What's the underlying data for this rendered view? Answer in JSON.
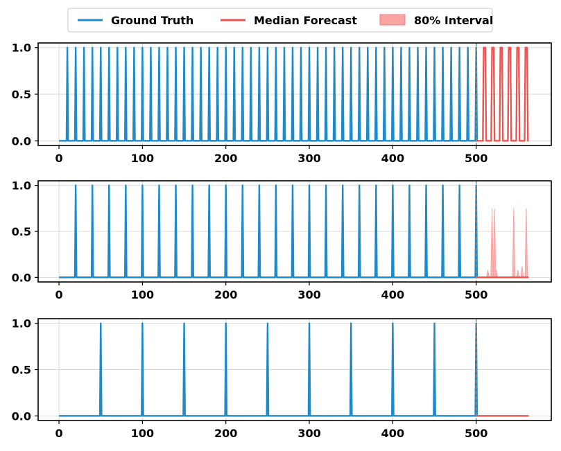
{
  "legend": [
    {
      "label": "Ground Truth",
      "color": "#1f8ac9",
      "kind": "line"
    },
    {
      "label": "Median Forecast",
      "color": "#ef5350",
      "kind": "line"
    },
    {
      "label": "80% Interval",
      "color": "#f9a3a3",
      "kind": "patch"
    }
  ],
  "chart_data": [
    {
      "type": "line",
      "xlim": [
        -25,
        590
      ],
      "ylim": [
        -0.05,
        1.05
      ],
      "xticks": [
        0,
        100,
        200,
        300,
        400,
        500
      ],
      "yticks": [
        0.0,
        0.5,
        1.0
      ],
      "xtick_labels": [
        "0",
        "100",
        "200",
        "300",
        "400",
        "500"
      ],
      "ytick_labels": [
        "0.0",
        "0.5",
        "1.0"
      ],
      "grid": true,
      "legend_position": "top-center",
      "forecast_start": 500,
      "ground_truth": {
        "baseline": 0,
        "spike_value": 1,
        "x_range": [
          0,
          500
        ],
        "spike_period": 10,
        "spike_first": 10
      },
      "median_forecast": {
        "x_range": [
          500,
          563
        ],
        "spikes": [
          510,
          520,
          530,
          540,
          550,
          560
        ],
        "spike_value": 1
      },
      "interval_80": {
        "spikes": [],
        "upper": 1
      }
    },
    {
      "type": "line",
      "xlim": [
        -25,
        590
      ],
      "ylim": [
        -0.05,
        1.05
      ],
      "xticks": [
        0,
        100,
        200,
        300,
        400,
        500
      ],
      "yticks": [
        0.0,
        0.5,
        1.0
      ],
      "xtick_labels": [
        "0",
        "100",
        "200",
        "300",
        "400",
        "500"
      ],
      "ytick_labels": [
        "0.0",
        "0.5",
        "1.0"
      ],
      "grid": true,
      "forecast_start": 500,
      "ground_truth": {
        "baseline": 0,
        "spike_value": 1,
        "x_range": [
          0,
          500
        ],
        "spike_period": 20,
        "spike_first": 20
      },
      "median_forecast": {
        "x_range": [
          500,
          563
        ],
        "spikes": [],
        "spike_value": 0
      },
      "interval_80": {
        "spikes": [
          [
            514,
            0.08
          ],
          [
            519,
            0.75
          ],
          [
            522,
            0.75
          ],
          [
            524,
            0.08
          ],
          [
            545,
            0.75
          ],
          [
            550,
            0.08
          ],
          [
            555,
            0.12
          ],
          [
            560,
            0.75
          ]
        ],
        "upper": 1
      }
    },
    {
      "type": "line",
      "xlim": [
        -25,
        590
      ],
      "ylim": [
        -0.05,
        1.05
      ],
      "xticks": [
        0,
        100,
        200,
        300,
        400,
        500
      ],
      "yticks": [
        0.0,
        0.5,
        1.0
      ],
      "xtick_labels": [
        "0",
        "100",
        "200",
        "300",
        "400",
        "500"
      ],
      "ytick_labels": [
        "0.0",
        "0.5",
        "1.0"
      ],
      "grid": true,
      "forecast_start": 500,
      "ground_truth": {
        "baseline": 0,
        "spike_value": 1,
        "x_range": [
          0,
          500
        ],
        "spike_period": 50,
        "spike_first": 50
      },
      "median_forecast": {
        "x_range": [
          500,
          563
        ],
        "spikes": [],
        "spike_value": 0
      },
      "interval_80": {
        "spikes": [],
        "upper": 1
      }
    }
  ]
}
